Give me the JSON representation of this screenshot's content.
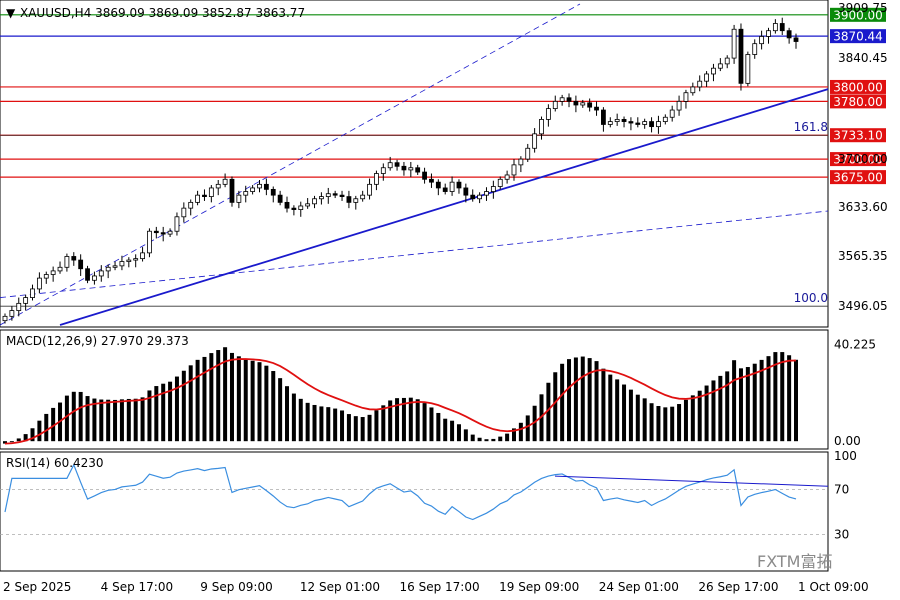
{
  "header": {
    "symbol_line": "XAUUSD,H4  3869.09 3869.09 3852.87 3863.77"
  },
  "watermark": "FXTM富拓",
  "colors": {
    "candle": "#000000",
    "level_red": "#e01010",
    "level_green": "#0a8a0a",
    "level_blue": "#1a1acc",
    "trend": "#1a1acc",
    "macd_signal": "#e01010",
    "rsi": "#3a8ee0"
  },
  "chart_data": [
    {
      "type": "candlestick",
      "title": "XAUUSD,H4",
      "ohlc_last": {
        "open": 3869.09,
        "high": 3869.09,
        "low": 3852.87,
        "close": 3863.77
      },
      "ylim": [
        3470,
        3915
      ],
      "y_ticks": [
        "3909.75",
        "3840.45",
        "3700.00",
        "3633.60",
        "3565.35",
        "3496.05"
      ],
      "x_ticks": [
        "2 Sep 2025",
        "4 Sep 17:00",
        "9 Sep 09:00",
        "12 Sep 01:00",
        "16 Sep 17:00",
        "19 Sep 09:00",
        "24 Sep 01:00",
        "26 Sep 17:00",
        "1 Oct 09:00"
      ],
      "close_series": [
        3482,
        3490,
        3500,
        3508,
        3520,
        3535,
        3540,
        3545,
        3550,
        3565,
        3560,
        3548,
        3532,
        3538,
        3545,
        3550,
        3552,
        3558,
        3560,
        3562,
        3570,
        3600,
        3598,
        3596,
        3600,
        3620,
        3632,
        3640,
        3650,
        3648,
        3660,
        3665,
        3672,
        3640,
        3650,
        3655,
        3660,
        3665,
        3658,
        3650,
        3640,
        3632,
        3630,
        3635,
        3638,
        3645,
        3648,
        3652,
        3650,
        3648,
        3640,
        3645,
        3650,
        3665,
        3680,
        3688,
        3695,
        3690,
        3685,
        3688,
        3682,
        3672,
        3668,
        3660,
        3655,
        3668,
        3660,
        3650,
        3645,
        3650,
        3655,
        3662,
        3672,
        3678,
        3692,
        3700,
        3715,
        3735,
        3755,
        3770,
        3780,
        3785,
        3780,
        3775,
        3778,
        3772,
        3768,
        3748,
        3752,
        3755,
        3752,
        3750,
        3748,
        3752,
        3745,
        3752,
        3758,
        3768,
        3780,
        3792,
        3800,
        3808,
        3818,
        3826,
        3832,
        3840,
        3880,
        3805,
        3845,
        3860,
        3870,
        3878,
        3888,
        3878,
        3868,
        3863
      ],
      "levels": [
        {
          "value": 3900.0,
          "label": "3900.00",
          "color": "level_green"
        },
        {
          "value": 3870.44,
          "label": "3870.44",
          "color": "level_blue"
        },
        {
          "value": 3800.0,
          "label": "3800.00",
          "color": "level_red"
        },
        {
          "value": 3780.0,
          "label": "3780.00",
          "color": "level_red"
        },
        {
          "value": 3733.1,
          "label": "3733.10",
          "color": "level_red"
        },
        {
          "value": 3700.0,
          "label": "3700.00",
          "color": "level_red"
        },
        {
          "value": 3675.0,
          "label": "3675.00",
          "color": "level_red"
        }
      ],
      "fib_labels": [
        {
          "value": 3733.1,
          "label": "161.8"
        },
        {
          "value": 3496.05,
          "label": "100.0"
        }
      ]
    },
    {
      "type": "bar",
      "title": "MACD(12,26,9) 27.970 29.373",
      "name": "MACD(12,26,9)",
      "macd": 27.97,
      "signal": 29.373,
      "ylim": [
        -2,
        42
      ],
      "y_ticks": [
        "40.225",
        "0.00"
      ]
    },
    {
      "type": "line",
      "title": "RSI(14) 60.4230",
      "name": "RSI(14)",
      "value": 60.423,
      "ylim": [
        0,
        100
      ],
      "y_ticks": [
        "100",
        "70",
        "30"
      ]
    }
  ]
}
